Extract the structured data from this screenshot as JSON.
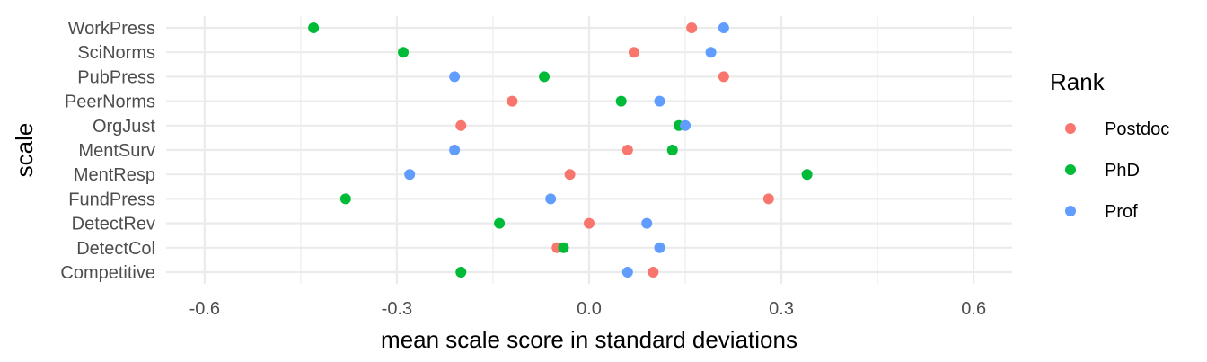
{
  "chart_data": {
    "type": "scatter",
    "xlabel": "mean scale score in standard deviations",
    "ylabel": "scale",
    "xlim": [
      -0.66,
      0.66
    ],
    "x_ticks": [
      -0.6,
      -0.3,
      0.0,
      0.3,
      0.6
    ],
    "x_tick_labels": [
      "-0.6",
      "-0.3",
      "0.0",
      "0.3",
      "0.6"
    ],
    "categories": [
      "WorkPress",
      "SciNorms",
      "PubPress",
      "PeerNorms",
      "OrgJust",
      "MentSurv",
      "MentResp",
      "FundPress",
      "DetectRev",
      "DetectCol",
      "Competitive"
    ],
    "grid": true,
    "legend": {
      "title": "Rank",
      "position": "right"
    },
    "series": [
      {
        "name": "Postdoc",
        "color": "#F8766D",
        "values": [
          0.16,
          0.07,
          0.21,
          -0.12,
          -0.2,
          0.06,
          -0.03,
          0.28,
          0.0,
          -0.05,
          0.1
        ]
      },
      {
        "name": "PhD",
        "color": "#00BA38",
        "values": [
          -0.43,
          -0.29,
          -0.07,
          0.05,
          0.14,
          0.13,
          0.34,
          -0.38,
          -0.14,
          -0.04,
          -0.2
        ]
      },
      {
        "name": "Prof",
        "color": "#619CFF",
        "values": [
          0.21,
          0.19,
          -0.21,
          0.11,
          0.15,
          -0.21,
          -0.28,
          -0.06,
          0.09,
          0.11,
          0.06
        ]
      }
    ]
  }
}
